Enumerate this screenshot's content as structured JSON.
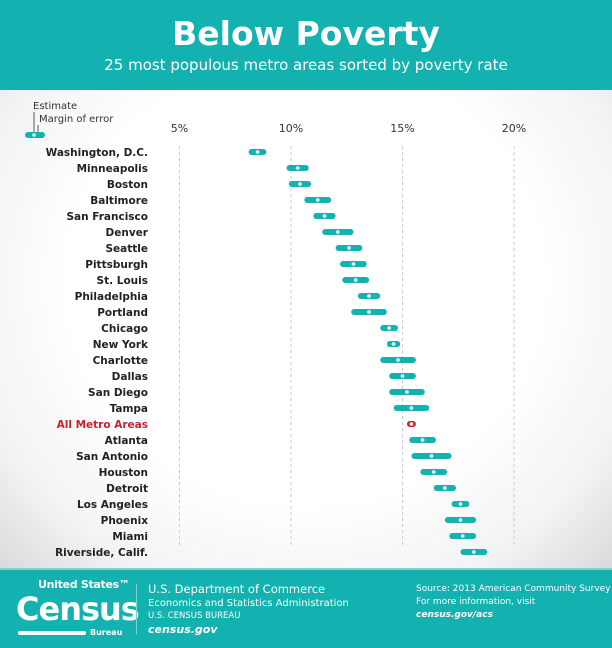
{
  "header": {
    "title": "Below Poverty",
    "subtitle": "25 most populous metro areas sorted by poverty rate"
  },
  "colors": {
    "brand": "#13b1b0",
    "bar": "#13b1b0",
    "highlight": "#c8202f",
    "dot": "#dff4f4"
  },
  "chart_data": {
    "type": "dot-range",
    "xlim": [
      0,
      22
    ],
    "xticks": [
      5,
      10,
      15,
      20
    ],
    "xtick_labels": [
      "5%",
      "10%",
      "15%",
      "20%"
    ],
    "grid": "vertical dashed",
    "legend": {
      "estimate": "Estimate",
      "margin": "Margin of error",
      "placement": "top-left"
    },
    "categories": [
      "Washington, D.C.",
      "Minneapolis",
      "Boston",
      "Baltimore",
      "San Francisco",
      "Denver",
      "Seattle",
      "Pittsburgh",
      "St. Louis",
      "Philadelphia",
      "Portland",
      "Chicago",
      "New York",
      "Charlotte",
      "Dallas",
      "San Diego",
      "Tampa",
      "All Metro Areas",
      "Atlanta",
      "San Antonio",
      "Houston",
      "Detroit",
      "Los Angeles",
      "Phoenix",
      "Miami",
      "Riverside, Calif."
    ],
    "estimates": [
      8.5,
      10.3,
      10.4,
      11.2,
      11.5,
      12.1,
      12.6,
      12.8,
      12.9,
      13.5,
      13.5,
      14.4,
      14.6,
      14.8,
      15.0,
      15.2,
      15.4,
      15.4,
      15.9,
      16.3,
      16.4,
      16.9,
      17.6,
      17.6,
      17.7,
      18.2
    ],
    "margins": [
      0.4,
      0.5,
      0.5,
      0.6,
      0.5,
      0.7,
      0.6,
      0.6,
      0.6,
      0.5,
      0.8,
      0.4,
      0.3,
      0.8,
      0.6,
      0.8,
      0.8,
      0.2,
      0.6,
      0.9,
      0.6,
      0.5,
      0.4,
      0.7,
      0.6,
      0.6
    ],
    "highlight_category": "All Metro Areas"
  },
  "footer": {
    "logo_line1": "United States™",
    "logo_line2": "Census",
    "logo_line3": "Bureau",
    "dept": "U.S. Department of Commerce",
    "admin": "Economics and Statistics Administration",
    "bureau": "U.S. CENSUS BUREAU",
    "site": "census.gov",
    "source": "Source: 2013 American Community Survey",
    "more_info": "For more information, visit",
    "more_link": "census.gov/acs"
  }
}
